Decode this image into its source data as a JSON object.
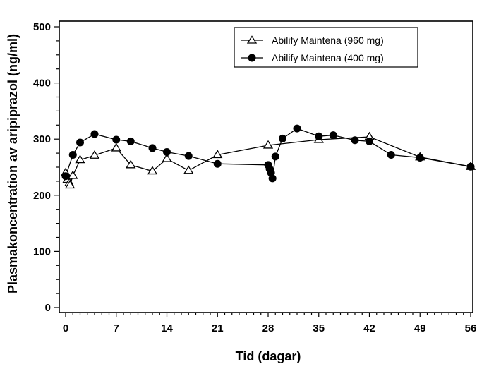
{
  "chart_data": {
    "type": "line",
    "title": "",
    "xlabel": "Tid (dagar)",
    "ylabel": "Plasmakoncentration av aripiprazol (ng/ml)",
    "xlim": [
      -0.9,
      56.3
    ],
    "ylim": [
      -9,
      512
    ],
    "xticks": [
      0,
      7,
      14,
      21,
      28,
      35,
      42,
      49,
      56
    ],
    "xtick_labels": [
      "0",
      "7",
      "14",
      "21",
      "28",
      "35",
      "42",
      "49",
      "56"
    ],
    "x_minor_step": 1,
    "yticks": [
      0,
      100,
      200,
      300,
      400,
      500
    ],
    "ytick_labels": [
      "0",
      "100",
      "200",
      "300",
      "400",
      "500"
    ],
    "y_minor_step": 25,
    "grid": false,
    "legend_position": "top-right",
    "series": [
      {
        "name": "Abilify Maintena (960 mg)",
        "marker": "open-triangle",
        "color": "#000000",
        "x": [
          0,
          0.25,
          0.5,
          0.6,
          1,
          2,
          4,
          7,
          9,
          12,
          14,
          17,
          21,
          28,
          35,
          42,
          49,
          56
        ],
        "y": [
          240,
          228,
          222,
          218,
          235,
          263,
          271,
          284,
          254,
          243,
          265,
          244,
          272,
          289,
          299,
          304,
          268,
          251
        ]
      },
      {
        "name": "Abilify Maintena (400 mg)",
        "marker": "filled-circle",
        "color": "#000000",
        "x": [
          0,
          1,
          2,
          4,
          7,
          9,
          12,
          14,
          17,
          21,
          28,
          28.2,
          28.4,
          28.6,
          29,
          30,
          32,
          35,
          37,
          40,
          42,
          45,
          49,
          56
        ],
        "y": [
          234,
          272,
          294,
          309,
          299,
          296,
          284,
          277,
          270,
          256,
          254,
          247,
          240,
          230,
          269,
          301,
          319,
          305,
          307,
          298,
          296,
          272,
          267,
          251
        ]
      }
    ]
  }
}
